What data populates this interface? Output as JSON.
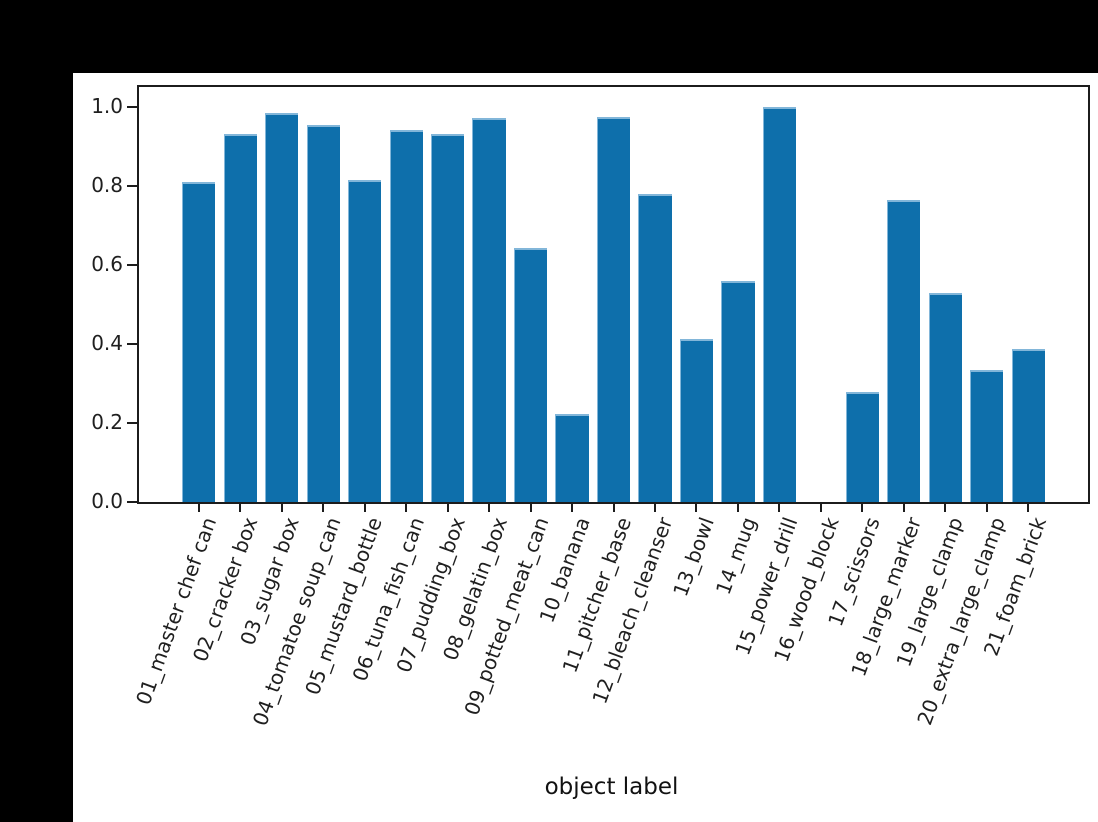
{
  "window": {
    "background_color": "#000000",
    "figure_background_color": "#ffffff"
  },
  "chart_data": {
    "type": "bar",
    "title": "",
    "xlabel": "object label",
    "ylabel": "",
    "categories": [
      "01_master chef can",
      "02_cracker box",
      "03_sugar box",
      "04_tomatoe soup_can",
      "05_mustard_bottle",
      "06_tuna_fish_can",
      "07_pudding_box",
      "08_gelatin_box",
      "09_potted_meat_can",
      "10_banana",
      "11_pitcher_base",
      "12_bleach_cleanser",
      "13_bowl",
      "14_mug",
      "15_power_drill",
      "16_wood_block",
      "17_scissors",
      "18_large_marker",
      "19_large_clamp",
      "20_extra_large_clamp",
      "21_foam_brick"
    ],
    "values": [
      0.81,
      0.932,
      0.985,
      0.955,
      0.814,
      0.942,
      0.932,
      0.972,
      0.643,
      0.223,
      0.974,
      0.78,
      0.413,
      0.558,
      1.0,
      0.0,
      0.278,
      0.765,
      0.529,
      0.333,
      0.388
    ],
    "ylim": [
      0,
      1.05
    ],
    "xlim": [
      -1.44,
      21.44
    ],
    "yticks": [
      0.0,
      0.2,
      0.4,
      0.6,
      0.8,
      1.0
    ],
    "ytick_labels": [
      "0.0",
      "0.2",
      "0.4",
      "0.6",
      "0.8",
      "1.0"
    ],
    "bar_width": 0.8,
    "bar_color": "#0e6fab",
    "axis_color": "#1c1c1c",
    "text_color": "#1f1f1f",
    "grid": false,
    "legend": null,
    "x_tick_rotation_deg": 70
  }
}
